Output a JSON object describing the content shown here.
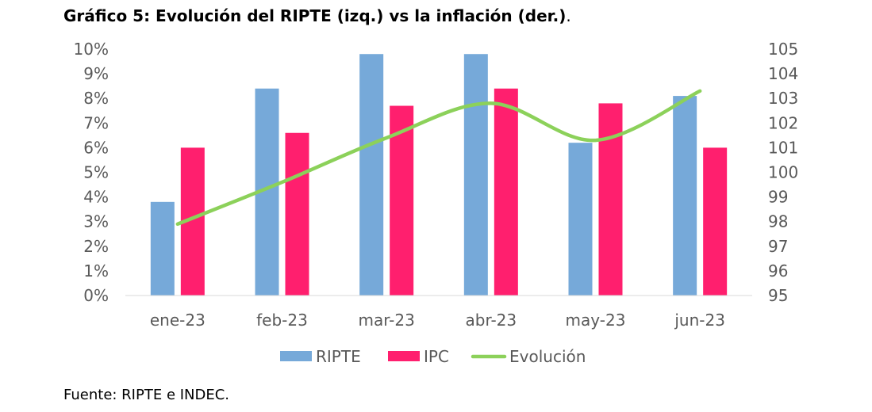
{
  "title": "Gráfico 5: Evolución del RIPTE (izq.) vs la inflación (der.)",
  "title_suffix": ".",
  "source": "Fuente: RIPTE e INDEC.",
  "chart_data": {
    "type": "bar",
    "categories": [
      "ene-23",
      "feb-23",
      "mar-23",
      "abr-23",
      "may-23",
      "jun-23"
    ],
    "series": [
      {
        "name": "RIPTE",
        "type": "bar",
        "axis": "left",
        "color": "#76A9D9",
        "values": [
          3.8,
          8.4,
          9.8,
          9.8,
          6.2,
          8.1
        ]
      },
      {
        "name": "IPC",
        "type": "bar",
        "axis": "left",
        "color": "#FF1F6E",
        "values": [
          6.0,
          6.6,
          7.7,
          8.4,
          7.8,
          6.0
        ]
      },
      {
        "name": "Evolución",
        "type": "line",
        "smooth": true,
        "axis": "right",
        "color": "#8CD15A",
        "values": [
          97.9,
          99.6,
          101.4,
          102.8,
          101.3,
          103.3
        ]
      }
    ],
    "y_left": {
      "min": 0,
      "max": 10,
      "step": 1,
      "format": "percent",
      "ticks": [
        "0%",
        "1%",
        "2%",
        "3%",
        "4%",
        "5%",
        "6%",
        "7%",
        "8%",
        "9%",
        "10%"
      ]
    },
    "y_right": {
      "min": 95,
      "max": 105,
      "step": 1,
      "ticks": [
        "95",
        "96",
        "97",
        "98",
        "99",
        "100",
        "101",
        "102",
        "103",
        "104",
        "105"
      ]
    },
    "grid": false,
    "legend": "bottom"
  }
}
